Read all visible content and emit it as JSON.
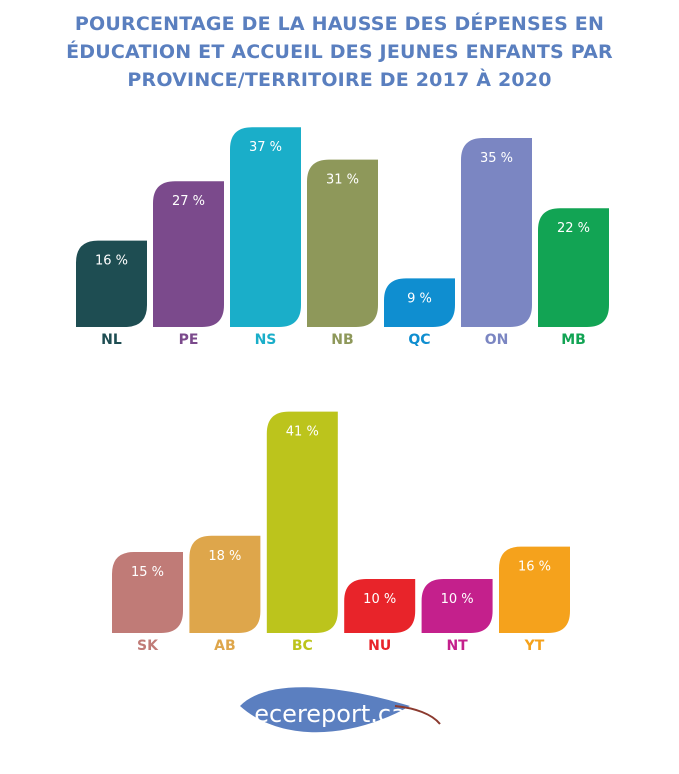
{
  "title": "POURCENTAGE DE LA HAUSSE DES DÉPENSES EN ÉDUCATION ET ACCUEIL DES JEUNES ENFANTS PAR PROVINCE/TERRITOIRE DE 2017 À 2020",
  "logo": {
    "text": "ecereport.ca",
    "color": "#5b7fc0",
    "stem_color": "#8b3a2f"
  },
  "chart_data": [
    {
      "type": "bar",
      "categories": [
        "NL",
        "PE",
        "NS",
        "NB",
        "QC",
        "ON",
        "MB"
      ],
      "values": [
        16,
        27,
        37,
        31,
        9,
        35,
        22
      ],
      "value_labels": [
        "16 %",
        "27 %",
        "37 %",
        "31 %",
        "9 %",
        "35 %",
        "22 %"
      ],
      "colors": [
        "#1e4d52",
        "#7b4a8c",
        "#1aaec9",
        "#8e985a",
        "#0f8ed0",
        "#7b86c2",
        "#12a454"
      ],
      "ylim": [
        0,
        41
      ],
      "grid": false
    },
    {
      "type": "bar",
      "categories": [
        "SK",
        "AB",
        "BC",
        "NU",
        "NT",
        "YT"
      ],
      "values": [
        15,
        18,
        41,
        10,
        10,
        16
      ],
      "value_labels": [
        "15 %",
        "18 %",
        "41 %",
        "10 %",
        "10 %",
        "16 %"
      ],
      "colors": [
        "#c07b77",
        "#dea64b",
        "#bcc41c",
        "#e8242a",
        "#c4208c",
        "#f5a21c"
      ],
      "ylim": [
        0,
        41
      ],
      "grid": false
    }
  ]
}
